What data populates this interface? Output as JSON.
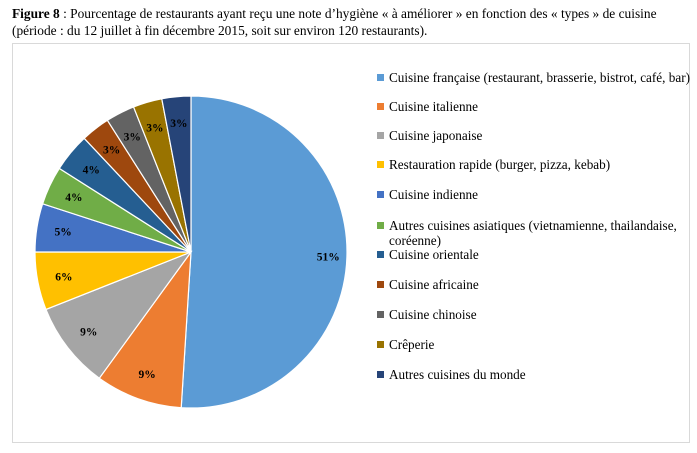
{
  "caption": {
    "label": "Figure 8",
    "text": " : Pourcentage de restaurants ayant reçu une note d’hygiène « à améliorer » en fonction des « types » de cuisine (période : du 12 juillet à fin décembre 2015, soit sur environ 120 restaurants)."
  },
  "chart_data": {
    "type": "pie",
    "title": "",
    "legend_position": "right",
    "slices": [
      {
        "label": "Cuisine française (restaurant, brasserie, bistrot, café, bar)",
        "value": 51,
        "value_label": "51%",
        "color": "#5b9bd5"
      },
      {
        "label": "Cuisine italienne",
        "value": 9,
        "value_label": "9%",
        "color": "#ed7d31"
      },
      {
        "label": "Cuisine japonaise",
        "value": 9,
        "value_label": "9%",
        "color": "#a5a5a5"
      },
      {
        "label": "Restauration rapide (burger, pizza, kebab)",
        "value": 6,
        "value_label": "6%",
        "color": "#ffc000"
      },
      {
        "label": "Cuisine indienne",
        "value": 5,
        "value_label": "5%",
        "color": "#4472c4"
      },
      {
        "label": "Autres cuisines asiatiques (vietnamienne, thailandaise, coréenne)",
        "value": 4,
        "value_label": "4%",
        "color": "#70ad47"
      },
      {
        "label": "Cuisine orientale",
        "value": 4,
        "value_label": "4%",
        "color": "#255e91"
      },
      {
        "label": "Cuisine africaine",
        "value": 3,
        "value_label": "3%",
        "color": "#9e480e"
      },
      {
        "label": "Cuisine chinoise",
        "value": 3,
        "value_label": "3%",
        "color": "#636363"
      },
      {
        "label": "Crêperie",
        "value": 3,
        "value_label": "3%",
        "color": "#997300"
      },
      {
        "label": "Autres cuisines du monde",
        "value": 3,
        "value_label": "3%",
        "color": "#264478"
      }
    ]
  }
}
